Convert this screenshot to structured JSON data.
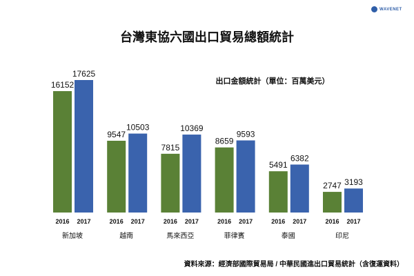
{
  "logo": {
    "text": "WAVENET"
  },
  "chart_data": {
    "type": "bar",
    "title": "台灣東協六國出口貿易總額統計",
    "unit_label": "出口金額統計（單位：百萬美元）",
    "categories": [
      "新加坡",
      "越南",
      "馬來西亞",
      "菲律賓",
      "泰國",
      "印尼"
    ],
    "series": [
      {
        "name": "2016",
        "color": "#5a8136",
        "values": [
          16152,
          9547,
          7815,
          8659,
          5491,
          2747
        ]
      },
      {
        "name": "2017",
        "color": "#3a63ad",
        "values": [
          17625,
          10503,
          10369,
          9593,
          6382,
          3193
        ]
      }
    ],
    "ylim": [
      0,
      17625
    ],
    "source": "資料來源：經濟部國際貿易局 / 中華民國進出口貿易統計（含復運資料）"
  }
}
